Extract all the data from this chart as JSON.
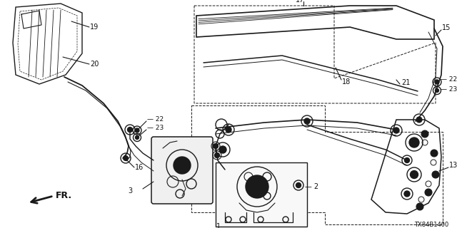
{
  "bg_color": "#ffffff",
  "line_color": "#1a1a1a",
  "label_color": "#111111",
  "watermark": "TX84B1400",
  "direction_label": "FR."
}
